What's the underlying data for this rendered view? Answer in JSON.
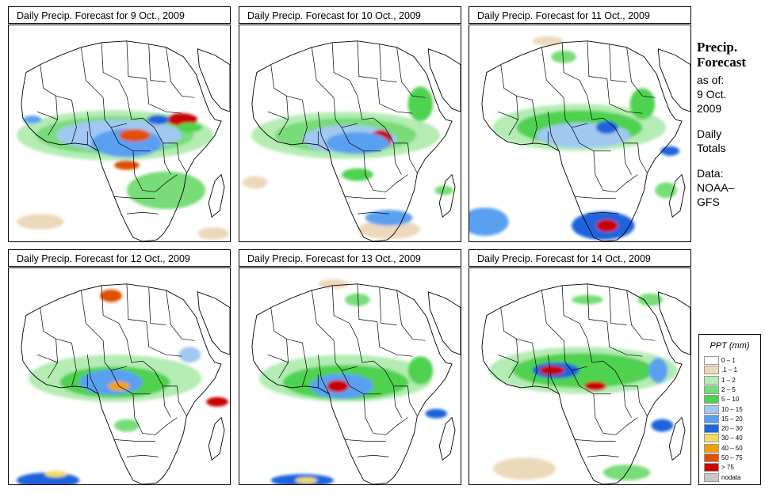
{
  "panels": [
    {
      "title": "Daily Precip. Forecast for  9 Oct., 2009"
    },
    {
      "title": "Daily Precip. Forecast for  10 Oct., 2009"
    },
    {
      "title": "Daily Precip. Forecast for  11 Oct., 2009"
    },
    {
      "title": "Daily Precip. Forecast for  12 Oct., 2009"
    },
    {
      "title": "Daily Precip. Forecast for  13 Oct., 2009"
    },
    {
      "title": "Daily Precip. Forecast for  14 Oct., 2009"
    }
  ],
  "sidebar": {
    "heading1": "Precip.",
    "heading2": "Forecast",
    "asof": "as of:",
    "date1": "9 Oct.",
    "date2": "2009",
    "daily1": "Daily",
    "daily2": "Totals",
    "data1": "Data:",
    "data2": "NOAA–",
    "data3": "GFS"
  },
  "legend": {
    "title": "PPT (mm)",
    "entries": [
      {
        "label": "0 – 1",
        "color": "#ffffff"
      },
      {
        "label": ".1 – 1",
        "color": "#ecd9bb"
      },
      {
        "label": "1 – 2",
        "color": "#b4ecb4"
      },
      {
        "label": "2 – 5",
        "color": "#78dc78"
      },
      {
        "label": "5 – 10",
        "color": "#50d250"
      },
      {
        "label": "10 – 15",
        "color": "#a0c8f0"
      },
      {
        "label": "15 – 20",
        "color": "#5aa0f0"
      },
      {
        "label": "20 – 30",
        "color": "#1e64dc"
      },
      {
        "label": "30 – 40",
        "color": "#f0dc64"
      },
      {
        "label": "40 – 50",
        "color": "#f0a000"
      },
      {
        "label": "50 – 75",
        "color": "#e05000"
      },
      {
        "label": "> 75",
        "color": "#c80000"
      },
      {
        "label": "nodata",
        "color": "#c8c8c8"
      }
    ]
  }
}
